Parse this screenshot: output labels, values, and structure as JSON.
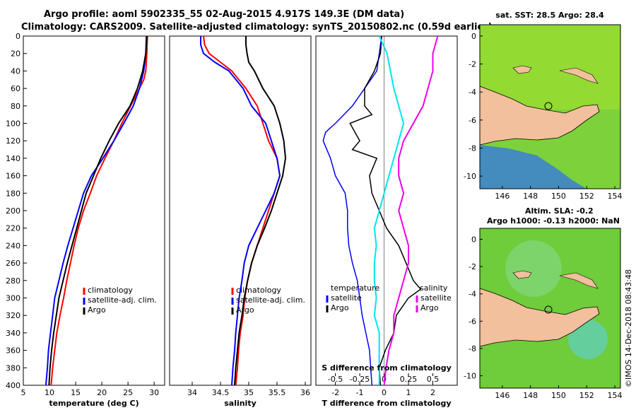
{
  "title_line1": "Argo profile: aoml 5902335_55 02-Aug-2015 4.917S 149.3E (DM data)",
  "title_line2": "Climatology: CARS2009. Satellite-adjusted climatology: synTS_20150802.nc (0.59d earlier)",
  "colors": {
    "climatology": "#ff0000",
    "satellite": "#0000ff",
    "argo": "#000000",
    "cyan": "#00e5ee",
    "magenta": "#ee00ee",
    "land": "#f2c09c",
    "ocean": "#6fcc3a"
  },
  "depth_axis": {
    "ticks": [
      0,
      20,
      40,
      60,
      80,
      100,
      120,
      140,
      160,
      180,
      200,
      220,
      240,
      260,
      280,
      300,
      320,
      340,
      360,
      380,
      400
    ],
    "ylim": [
      0,
      400
    ]
  },
  "chart_data": [
    {
      "type": "line",
      "xlabel": "temperature (deg C)",
      "xlim": [
        5,
        32
      ],
      "xticks": [
        5,
        10,
        15,
        20,
        25,
        30
      ],
      "legend": {
        "position": "center-right",
        "entries": [
          "climatology",
          "satellite-adj. clim.",
          "Argo"
        ]
      },
      "series": [
        {
          "name": "climatology",
          "depth": [
            0,
            20,
            40,
            50,
            60,
            80,
            100,
            120,
            140,
            160,
            180,
            200,
            220,
            240,
            260,
            280,
            300,
            320,
            340,
            360,
            380,
            400
          ],
          "values": [
            28.7,
            28.6,
            28.4,
            28.0,
            27.2,
            25.5,
            23.8,
            22.3,
            20.6,
            19.0,
            17.8,
            16.5,
            15.5,
            14.7,
            14.0,
            13.3,
            12.7,
            12.0,
            11.4,
            11.0,
            10.6,
            10.3
          ]
        },
        {
          "name": "satellite-adj. clim.",
          "depth": [
            0,
            20,
            40,
            60,
            80,
            100,
            120,
            140,
            160,
            180,
            200,
            220,
            240,
            260,
            280,
            300,
            320,
            340,
            360,
            380,
            400
          ],
          "values": [
            28.5,
            28.4,
            28.0,
            27.2,
            26.0,
            24.2,
            22.3,
            20.2,
            18.0,
            16.5,
            15.5,
            14.5,
            13.5,
            12.6,
            11.8,
            11.0,
            10.6,
            10.2,
            9.8,
            9.6,
            9.3
          ]
        },
        {
          "name": "Argo",
          "depth": [
            0,
            20,
            40,
            60,
            80,
            100,
            120,
            140,
            160,
            180,
            200,
            220,
            240,
            260,
            280,
            300,
            320,
            340,
            360,
            380,
            400
          ],
          "values": [
            28.6,
            28.4,
            27.8,
            26.8,
            25.4,
            23.2,
            21.4,
            19.8,
            18.4,
            17.0,
            16.1,
            15.2,
            14.3,
            13.4,
            12.6,
            11.8,
            11.3,
            10.8,
            10.4,
            10.1,
            9.9
          ]
        }
      ]
    },
    {
      "type": "line",
      "xlabel": "salinity",
      "xlim": [
        33.6,
        36.1
      ],
      "xticks": [
        34,
        34.5,
        35,
        35.5,
        36
      ],
      "legend": {
        "position": "center-right",
        "entries": [
          "climatology",
          "satellite-adj. clim.",
          "Argo"
        ]
      },
      "series": [
        {
          "name": "climatology",
          "depth": [
            0,
            10,
            20,
            30,
            40,
            60,
            80,
            100,
            120,
            140,
            160,
            180,
            200,
            220,
            240,
            260,
            280,
            300,
            320,
            340,
            360,
            380,
            400
          ],
          "values": [
            34.2,
            34.22,
            34.3,
            34.5,
            34.7,
            34.95,
            35.15,
            35.25,
            35.35,
            35.5,
            35.55,
            35.45,
            35.35,
            35.25,
            35.15,
            35.05,
            34.98,
            34.93,
            34.9,
            34.85,
            34.82,
            34.8,
            34.77
          ]
        },
        {
          "name": "satellite-adj. clim.",
          "depth": [
            0,
            10,
            20,
            30,
            40,
            60,
            80,
            100,
            120,
            140,
            160,
            180,
            200,
            220,
            240,
            260,
            280,
            300,
            320,
            340,
            360,
            380,
            400
          ],
          "values": [
            34.15,
            34.15,
            34.2,
            34.4,
            34.65,
            34.9,
            35.05,
            35.3,
            35.4,
            35.5,
            35.55,
            35.45,
            35.3,
            35.15,
            35.0,
            34.92,
            34.88,
            34.83,
            34.8,
            34.77,
            34.75,
            34.72,
            34.7
          ]
        },
        {
          "name": "Argo",
          "depth": [
            0,
            10,
            20,
            30,
            40,
            60,
            80,
            100,
            120,
            140,
            160,
            180,
            200,
            220,
            240,
            260,
            280,
            300,
            320,
            340,
            360,
            380,
            400
          ],
          "values": [
            34.95,
            34.95,
            34.97,
            35.0,
            35.1,
            35.25,
            35.45,
            35.55,
            35.62,
            35.65,
            35.6,
            35.5,
            35.4,
            35.28,
            35.15,
            35.05,
            34.98,
            34.92,
            34.88,
            34.83,
            34.8,
            34.77,
            34.75
          ]
        }
      ]
    },
    {
      "type": "line",
      "xlabel": "T difference from climatology",
      "xlabel_top": "S difference from climatology",
      "xlim": [
        -2.8,
        3.0
      ],
      "xticks": [
        -2,
        -1,
        0,
        1,
        2
      ],
      "xlim_top": [
        -0.7,
        0.75
      ],
      "xticks_top": [
        -0.5,
        -0.25,
        0,
        0.25,
        0.5
      ],
      "xticklabels_top": [
        "-0.5",
        "-0.25",
        "0",
        "0.25",
        "0.5"
      ],
      "legend": {
        "position": "lower",
        "temperature_title": "temperature",
        "salinity_title": "salinity",
        "entries_temperature": [
          "satellite",
          "Argo"
        ],
        "entries_salinity": [
          "satellite",
          "Argo"
        ]
      },
      "series": [
        {
          "name": "T satellite",
          "depth": [
            0,
            40,
            60,
            80,
            100,
            110,
            120,
            140,
            160,
            180,
            200,
            220,
            240,
            260,
            280,
            300,
            320,
            340,
            360,
            380,
            400
          ],
          "values": [
            -0.1,
            -0.3,
            -0.8,
            -1.3,
            -2.0,
            -2.4,
            -2.5,
            -2.2,
            -2.0,
            -1.6,
            -1.5,
            -1.5,
            -1.45,
            -1.3,
            -1.1,
            -1.0,
            -0.9,
            -0.75,
            -0.6,
            -0.55,
            -0.5
          ]
        },
        {
          "name": "T Argo",
          "depth": [
            0,
            20,
            40,
            60,
            80,
            90,
            100,
            120,
            130,
            140,
            160,
            180,
            200,
            220,
            240,
            260,
            280,
            290,
            300,
            320,
            340,
            360,
            380,
            400
          ],
          "values": [
            -0.1,
            -0.15,
            -0.4,
            -0.8,
            -0.8,
            -0.5,
            -1.4,
            -1.0,
            -1.3,
            -0.3,
            -0.6,
            -0.5,
            -0.2,
            0.1,
            0.6,
            0.9,
            1.2,
            1.5,
            1.0,
            0.5,
            0.4,
            0.05,
            -0.2,
            -0.15
          ]
        },
        {
          "name": "S satellite",
          "depth": [
            0,
            20,
            60,
            80,
            100,
            120,
            140,
            160,
            180,
            200,
            220,
            240,
            260,
            280,
            300,
            320,
            340,
            360,
            380,
            400
          ],
          "values": [
            -0.05,
            0.03,
            0.1,
            0.15,
            0.2,
            0.15,
            0.1,
            0.05,
            0.0,
            -0.05,
            -0.1,
            -0.08,
            -0.1,
            -0.1,
            -0.08,
            -0.1,
            -0.05,
            -0.05,
            -0.05,
            -0.05
          ]
        },
        {
          "name": "S Argo",
          "depth": [
            0,
            20,
            40,
            60,
            80,
            100,
            120,
            140,
            160,
            180,
            200,
            220,
            240,
            260,
            280,
            300,
            320,
            340,
            360,
            380,
            400
          ],
          "values": [
            0.55,
            0.5,
            0.5,
            0.45,
            0.4,
            0.3,
            0.2,
            0.15,
            0.15,
            0.2,
            0.15,
            0.2,
            0.25,
            0.25,
            0.2,
            0.15,
            0.1,
            0.1,
            0.05,
            0.02,
            0.0
          ]
        }
      ]
    }
  ],
  "map_top": {
    "title": "sat. SST: 28.5 Argo: 28.4",
    "lon_ticks": [
      146,
      148,
      150,
      152,
      154
    ],
    "lat_ticks": [
      0,
      -2,
      -4,
      -6,
      -8,
      -10
    ]
  },
  "map_bottom": {
    "title_line1": "Altim. SLA: -0.2",
    "title_line2": "Argo h1000: -0.13 h2000: NaN",
    "lon_ticks": [
      146,
      148,
      150,
      152,
      154
    ],
    "lat_ticks": [
      0,
      -2,
      -4,
      -6,
      -8,
      -10
    ]
  },
  "credit": "©IMOS 14-Dec-2018 08:43:48"
}
